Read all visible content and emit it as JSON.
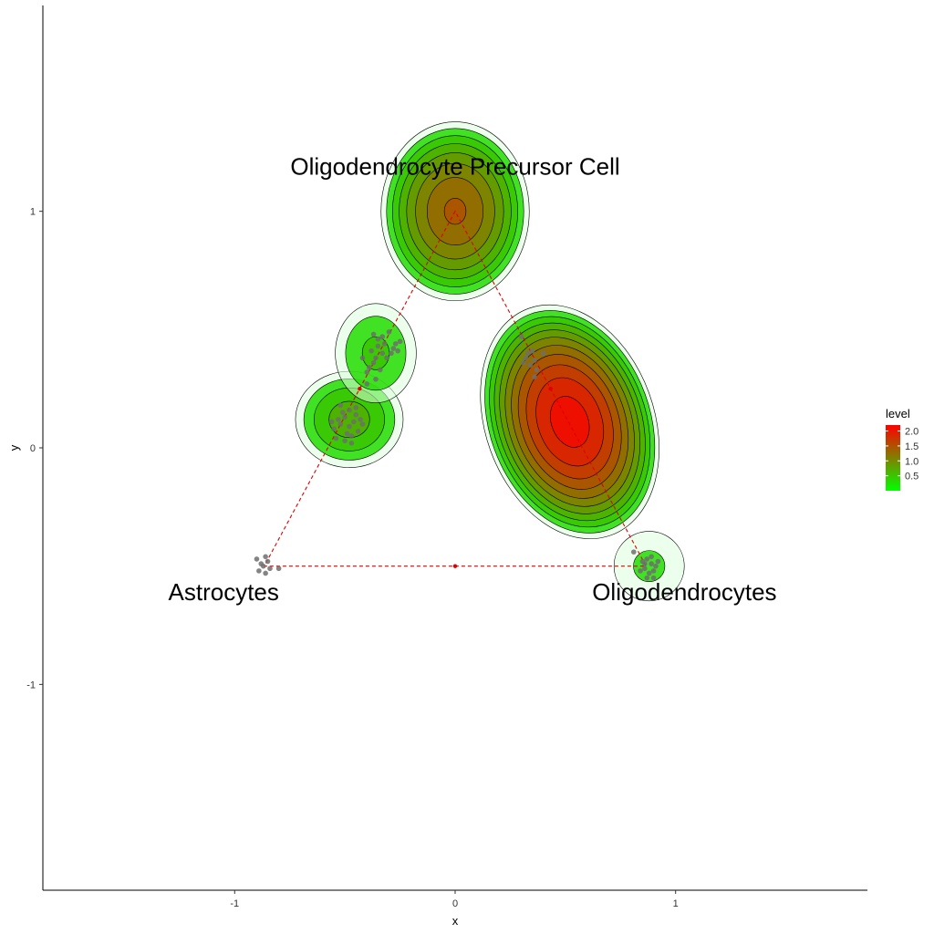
{
  "chart_data": {
    "type": "scatter",
    "xlabel": "x",
    "ylabel": "y",
    "xlim": [
      -1.87,
      1.87
    ],
    "ylim": [
      -1.87,
      1.87
    ],
    "x_ticks": [
      -1,
      0,
      1
    ],
    "y_ticks": [
      -1,
      0,
      1
    ],
    "grid": false,
    "legend": {
      "title": "level",
      "placement": "right",
      "range": [
        0,
        2.2
      ],
      "ticks": [
        0.5,
        1.0,
        1.5,
        2.0
      ],
      "tick_labels": [
        "0.5",
        "1.0",
        "1.5",
        "2.0"
      ],
      "colors": [
        "#00ff00",
        "#ff0000"
      ]
    },
    "annotations": [
      {
        "text": "Oligodendrocyte Precursor Cell",
        "x": 0.0,
        "y": 1.19
      },
      {
        "text": "Astrocytes",
        "x": -1.05,
        "y": -0.61
      },
      {
        "text": "Oligodendrocytes",
        "x": 1.04,
        "y": -0.61
      }
    ],
    "triangle_vertices": [
      {
        "x": 0.0,
        "y": 1.0
      },
      {
        "x": -0.866,
        "y": -0.5
      },
      {
        "x": 0.866,
        "y": -0.5
      }
    ],
    "midpoints": [
      {
        "x": -0.433,
        "y": 0.25
      },
      {
        "x": 0.433,
        "y": 0.25
      },
      {
        "x": 0.0,
        "y": -0.5
      }
    ],
    "density_peaks": [
      {
        "x": 0.0,
        "y": 1.0,
        "level": 1.5,
        "sx": 0.24,
        "sy": 0.27,
        "rot": 0
      },
      {
        "x": -0.48,
        "y": 0.12,
        "level": 0.8,
        "sx": 0.18,
        "sy": 0.15,
        "rot": 0
      },
      {
        "x": -0.36,
        "y": 0.4,
        "level": 0.55,
        "sx": 0.14,
        "sy": 0.16,
        "rot": 0
      },
      {
        "x": 0.52,
        "y": 0.11,
        "level": 2.2,
        "sx": 0.27,
        "sy": 0.36,
        "rot": 20
      },
      {
        "x": 0.88,
        "y": -0.5,
        "level": 0.35,
        "sx": 0.13,
        "sy": 0.12,
        "rot": 0
      }
    ],
    "points": [
      {
        "x": -0.3,
        "y": 0.49
      },
      {
        "x": -0.27,
        "y": 0.44
      },
      {
        "x": -0.25,
        "y": 0.45
      },
      {
        "x": -0.28,
        "y": 0.42
      },
      {
        "x": -0.33,
        "y": 0.4
      },
      {
        "x": -0.35,
        "y": 0.43
      },
      {
        "x": -0.36,
        "y": 0.38
      },
      {
        "x": -0.38,
        "y": 0.41
      },
      {
        "x": -0.35,
        "y": 0.46
      },
      {
        "x": -0.32,
        "y": 0.44
      },
      {
        "x": -0.39,
        "y": 0.34
      },
      {
        "x": -0.4,
        "y": 0.32
      },
      {
        "x": -0.37,
        "y": 0.36
      },
      {
        "x": -0.42,
        "y": 0.38
      },
      {
        "x": -0.34,
        "y": 0.33
      },
      {
        "x": -0.31,
        "y": 0.38
      },
      {
        "x": -0.29,
        "y": 0.4
      },
      {
        "x": -0.36,
        "y": 0.29
      },
      {
        "x": -0.4,
        "y": 0.27
      },
      {
        "x": -0.33,
        "y": 0.47
      },
      {
        "x": -0.37,
        "y": 0.48
      },
      {
        "x": -0.26,
        "y": 0.41
      },
      {
        "x": -0.45,
        "y": 0.14
      },
      {
        "x": -0.5,
        "y": 0.13
      },
      {
        "x": -0.52,
        "y": 0.1
      },
      {
        "x": -0.48,
        "y": 0.09
      },
      {
        "x": -0.46,
        "y": 0.11
      },
      {
        "x": -0.51,
        "y": 0.15
      },
      {
        "x": -0.53,
        "y": 0.12
      },
      {
        "x": -0.49,
        "y": 0.06
      },
      {
        "x": -0.47,
        "y": 0.05
      },
      {
        "x": -0.55,
        "y": 0.08
      },
      {
        "x": -0.44,
        "y": 0.07
      },
      {
        "x": -0.5,
        "y": 0.03
      },
      {
        "x": -0.45,
        "y": 0.17
      },
      {
        "x": -0.54,
        "y": 0.04
      },
      {
        "x": -0.43,
        "y": 0.12
      },
      {
        "x": -0.48,
        "y": 0.16
      },
      {
        "x": -0.52,
        "y": 0.18
      },
      {
        "x": -0.47,
        "y": 0.02
      },
      {
        "x": -0.56,
        "y": 0.11
      },
      {
        "x": -0.42,
        "y": 0.1
      },
      {
        "x": 0.3,
        "y": 0.47
      },
      {
        "x": 0.33,
        "y": 0.4
      },
      {
        "x": 0.35,
        "y": 0.41
      },
      {
        "x": 0.32,
        "y": 0.38
      },
      {
        "x": 0.36,
        "y": 0.37
      },
      {
        "x": 0.4,
        "y": 0.4
      },
      {
        "x": 0.31,
        "y": 0.36
      },
      {
        "x": 0.34,
        "y": 0.35
      },
      {
        "x": 0.37,
        "y": 0.33
      },
      {
        "x": 0.36,
        "y": 0.3
      },
      {
        "x": -0.87,
        "y": -0.5
      },
      {
        "x": -0.85,
        "y": -0.48
      },
      {
        "x": -0.89,
        "y": -0.52
      },
      {
        "x": -0.86,
        "y": -0.53
      },
      {
        "x": -0.84,
        "y": -0.51
      },
      {
        "x": -0.88,
        "y": -0.49
      },
      {
        "x": -0.9,
        "y": -0.47
      },
      {
        "x": -0.86,
        "y": -0.46
      },
      {
        "x": -0.8,
        "y": -0.51
      },
      {
        "x": 0.81,
        "y": -0.44
      },
      {
        "x": 0.87,
        "y": -0.47
      },
      {
        "x": 0.89,
        "y": -0.49
      },
      {
        "x": 0.86,
        "y": -0.51
      },
      {
        "x": 0.9,
        "y": -0.52
      },
      {
        "x": 0.88,
        "y": -0.53
      },
      {
        "x": 0.85,
        "y": -0.48
      },
      {
        "x": 0.91,
        "y": -0.5
      },
      {
        "x": 0.87,
        "y": -0.55
      },
      {
        "x": 0.84,
        "y": -0.52
      },
      {
        "x": 0.92,
        "y": -0.48
      },
      {
        "x": 0.89,
        "y": -0.46
      },
      {
        "x": 0.86,
        "y": -0.49
      },
      {
        "x": 0.9,
        "y": -0.55
      }
    ]
  },
  "colors": {
    "point": "#6f6f6f",
    "triangle_line": "#e00000",
    "contour_line": "#000000",
    "low": "#00ff00",
    "high": "#ff0000"
  }
}
